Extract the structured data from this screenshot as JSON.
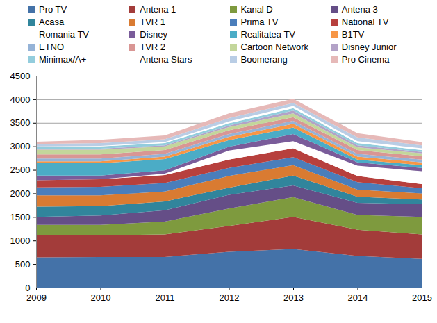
{
  "chart_data": {
    "type": "area",
    "stacked": true,
    "grid": true,
    "legend": "top",
    "x": [
      2009,
      2010,
      2011,
      2012,
      2013,
      2014,
      2015
    ],
    "xlim": [
      2009,
      2015
    ],
    "xticks": [
      2009,
      2010,
      2011,
      2012,
      2013,
      2014,
      2015
    ],
    "ylim": [
      0,
      4500
    ],
    "yticks": [
      0,
      500,
      1000,
      1500,
      2000,
      2500,
      3000,
      3500,
      4000,
      4500
    ],
    "series": [
      {
        "name": "Pro TV",
        "color": "#4472A8",
        "values": [
          640,
          650,
          650,
          760,
          820,
          670,
          610
        ]
      },
      {
        "name": "Antena 1",
        "color": "#A33C3A",
        "values": [
          480,
          460,
          480,
          550,
          680,
          560,
          520
        ]
      },
      {
        "name": "Kanal D",
        "color": "#7E9A3E",
        "values": [
          210,
          220,
          270,
          370,
          420,
          310,
          370
        ]
      },
      {
        "name": "Antena 3",
        "color": "#654E87",
        "values": [
          170,
          200,
          240,
          290,
          250,
          260,
          270
        ]
      },
      {
        "name": "Acasa",
        "color": "#31859C",
        "values": [
          220,
          200,
          190,
          150,
          210,
          130,
          100
        ]
      },
      {
        "name": "TVR 1",
        "color": "#D97B32",
        "values": [
          240,
          230,
          210,
          250,
          220,
          150,
          130
        ]
      },
      {
        "name": "Prima TV",
        "color": "#4A7EBB",
        "values": [
          170,
          180,
          180,
          170,
          170,
          160,
          110
        ]
      },
      {
        "name": "National TV",
        "color": "#B7403D",
        "values": [
          150,
          160,
          170,
          180,
          190,
          130,
          90
        ]
      },
      {
        "name": "Romania TV",
        "color": "#FFFFFF",
        "values": [
          0,
          0,
          30,
          190,
          150,
          220,
          270
        ]
      },
      {
        "name": "Disney",
        "color": "#7A5C9A",
        "values": [
          100,
          80,
          70,
          80,
          150,
          70,
          70
        ]
      },
      {
        "name": "Realitatea TV",
        "color": "#4BACC6",
        "values": [
          260,
          260,
          240,
          140,
          140,
          60,
          60
        ]
      },
      {
        "name": "B1TV",
        "color": "#F79646",
        "values": [
          40,
          40,
          50,
          70,
          80,
          60,
          60
        ]
      },
      {
        "name": "ETNO",
        "color": "#95B3D7",
        "values": [
          60,
          60,
          60,
          60,
          60,
          60,
          60
        ]
      },
      {
        "name": "TVR 2",
        "color": "#D99694",
        "values": [
          90,
          90,
          80,
          80,
          80,
          80,
          70
        ]
      },
      {
        "name": "Cartoon Network",
        "color": "#C3D69B",
        "values": [
          100,
          100,
          80,
          70,
          80,
          60,
          60
        ]
      },
      {
        "name": "Disney Junior",
        "color": "#B3A2C7",
        "values": [
          20,
          20,
          20,
          30,
          60,
          40,
          30
        ]
      },
      {
        "name": "Minimax/A+",
        "color": "#93CDDD",
        "values": [
          40,
          50,
          50,
          50,
          50,
          50,
          40
        ]
      },
      {
        "name": "Antena Stars",
        "color": "#FFFFFF",
        "values": [
          10,
          10,
          20,
          40,
          50,
          40,
          40
        ]
      },
      {
        "name": "Boomerang",
        "color": "#B9CDE5",
        "values": [
          50,
          60,
          60,
          70,
          60,
          80,
          60
        ]
      },
      {
        "name": "Pro Cinema",
        "color": "#E6B9B8",
        "values": [
          50,
          70,
          80,
          100,
          90,
          90,
          70
        ]
      }
    ]
  }
}
